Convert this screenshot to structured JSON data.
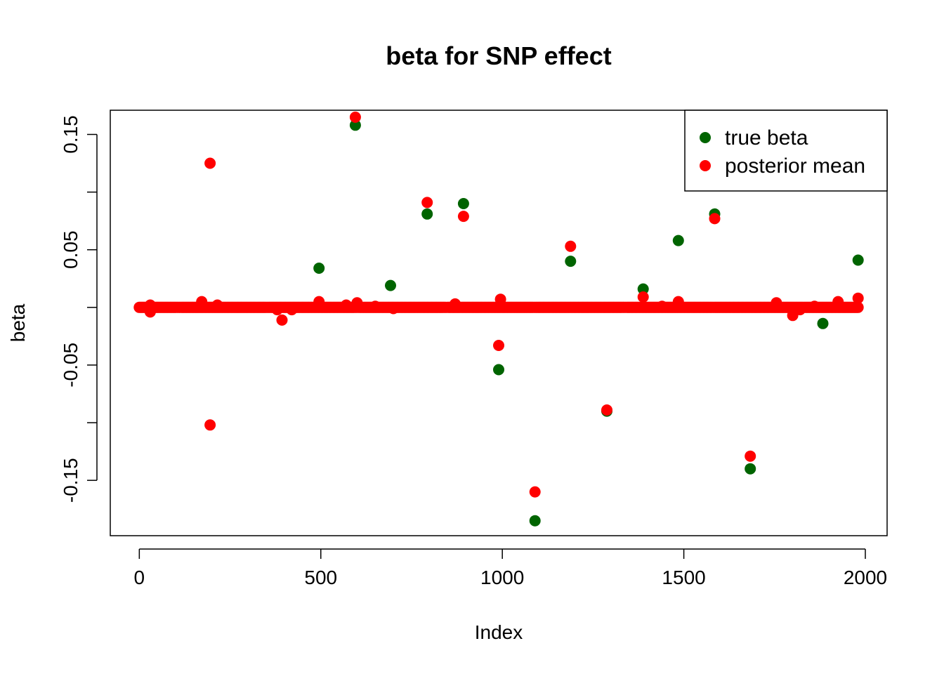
{
  "chart_data": {
    "type": "scatter",
    "title": "beta for SNP effect",
    "xlabel": "Index",
    "ylabel": "beta",
    "xlim": [
      -80,
      2060
    ],
    "ylim": [
      -0.198,
      0.171
    ],
    "x_ticks": [
      0,
      500,
      1000,
      1500,
      2000
    ],
    "x_tick_labels": [
      "0",
      "500",
      "1000",
      "1500",
      "2000"
    ],
    "y_ticks": [
      -0.15,
      -0.1,
      -0.05,
      0,
      0.05,
      0.1,
      0.15
    ],
    "y_tick_labels": [
      "-0.15",
      "",
      "-0.05",
      "",
      "0.05",
      "",
      "0.15"
    ],
    "grid": false,
    "legend": {
      "position": "top-right",
      "entries": [
        "true beta",
        "posterior mean"
      ]
    },
    "baseline": {
      "from": 0,
      "to": 1980,
      "value": 0,
      "color": "#ff0000",
      "description": "dense cluster of posterior mean points near zero for all indices"
    },
    "series": [
      {
        "name": "true beta",
        "color": "#006400",
        "points": [
          {
            "x": 495,
            "y": 0.034
          },
          {
            "x": 595,
            "y": 0.158
          },
          {
            "x": 692,
            "y": 0.019
          },
          {
            "x": 793,
            "y": 0.081
          },
          {
            "x": 893,
            "y": 0.09
          },
          {
            "x": 990,
            "y": -0.054
          },
          {
            "x": 1090,
            "y": -0.185
          },
          {
            "x": 1188,
            "y": 0.04
          },
          {
            "x": 1288,
            "y": -0.09
          },
          {
            "x": 1388,
            "y": 0.016
          },
          {
            "x": 1485,
            "y": 0.058
          },
          {
            "x": 1585,
            "y": 0.081
          },
          {
            "x": 1683,
            "y": -0.14
          },
          {
            "x": 1883,
            "y": -0.014
          },
          {
            "x": 1980,
            "y": 0.041
          }
        ]
      },
      {
        "name": "posterior mean",
        "color": "#ff0000",
        "points": [
          {
            "x": 195,
            "y": 0.125
          },
          {
            "x": 195,
            "y": -0.102
          },
          {
            "x": 595,
            "y": 0.165
          },
          {
            "x": 793,
            "y": 0.091
          },
          {
            "x": 893,
            "y": 0.079
          },
          {
            "x": 990,
            "y": -0.033
          },
          {
            "x": 1090,
            "y": -0.16
          },
          {
            "x": 1188,
            "y": 0.053
          },
          {
            "x": 1288,
            "y": -0.089
          },
          {
            "x": 1585,
            "y": 0.077
          },
          {
            "x": 1683,
            "y": -0.129
          },
          {
            "x": 393,
            "y": -0.011
          },
          {
            "x": 1800,
            "y": -0.007
          },
          {
            "x": 1388,
            "y": 0.009
          },
          {
            "x": 995,
            "y": 0.007
          },
          {
            "x": 1980,
            "y": 0.008
          },
          {
            "x": 30,
            "y": -0.004
          },
          {
            "x": 30,
            "y": 0.002
          },
          {
            "x": 172,
            "y": 0.005
          },
          {
            "x": 215,
            "y": 0.002
          },
          {
            "x": 380,
            "y": -0.002
          },
          {
            "x": 420,
            "y": -0.002
          },
          {
            "x": 495,
            "y": 0.005
          },
          {
            "x": 570,
            "y": 0.002
          },
          {
            "x": 600,
            "y": 0.004
          },
          {
            "x": 650,
            "y": 0.001
          },
          {
            "x": 700,
            "y": -0.001
          },
          {
            "x": 870,
            "y": 0.003
          },
          {
            "x": 1440,
            "y": 0.001
          },
          {
            "x": 1485,
            "y": 0.005
          },
          {
            "x": 1755,
            "y": 0.004
          },
          {
            "x": 1925,
            "y": 0.005
          },
          {
            "x": 1820,
            "y": -0.002
          },
          {
            "x": 1860,
            "y": 0.001
          }
        ]
      }
    ]
  }
}
